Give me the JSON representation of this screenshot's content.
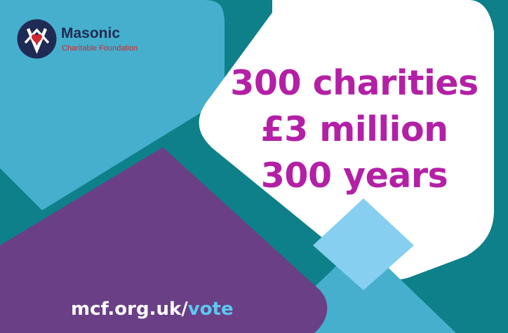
{
  "logo": {
    "name": "Masonic",
    "subtitle": "Charitable Foundation",
    "icon": "masonic-square-compass-heart-icon"
  },
  "headline": {
    "line1": "300 charities",
    "line2": "£3 million",
    "line3": "300 years"
  },
  "url": {
    "domain_part": "mcf.org.uk/",
    "path_part": "vote"
  },
  "colors": {
    "teal": "#0e8089",
    "light_blue": "#45afcd",
    "pale_blue": "#86cff0",
    "purple": "#6a3f86",
    "magenta_text": "#b320a6",
    "navy": "#1f2a55",
    "logo_red": "#d2272e",
    "white": "#ffffff",
    "url_highlight": "#5cc8f0"
  }
}
